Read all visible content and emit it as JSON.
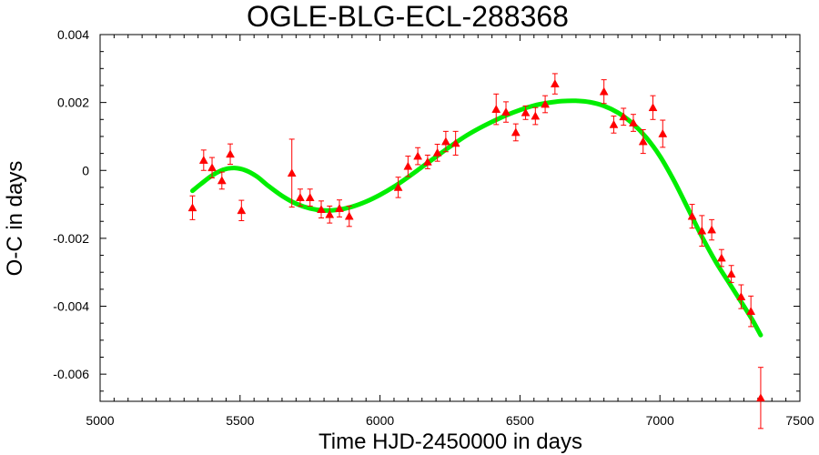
{
  "chart_data": {
    "type": "scatter",
    "title": "OGLE-BLG-ECL-288368",
    "xlabel": "Time HJD-2450000 in days",
    "ylabel": "O-C in days",
    "xlim": [
      5000,
      7500
    ],
    "ylim": [
      -0.0068,
      0.004
    ],
    "x_ticks": [
      5000,
      5500,
      6000,
      6500,
      7000,
      7500
    ],
    "x_tick_labels": [
      "5000",
      "5500",
      "6000",
      "6500",
      "7000",
      "7500"
    ],
    "y_ticks": [
      0.004,
      0.002,
      0,
      -0.002,
      -0.004,
      -0.006
    ],
    "y_tick_labels": [
      "0.004",
      "0.002",
      "0",
      "-0.002",
      "-0.004",
      "-0.006"
    ],
    "grid": false,
    "series": [
      {
        "kind": "points_with_errorbars",
        "color": "#ff0000",
        "marker": "triangle",
        "points": [
          {
            "x": 5330,
            "y": -0.0011,
            "err": 0.00035
          },
          {
            "x": 5370,
            "y": 0.0003,
            "err": 0.0003
          },
          {
            "x": 5400,
            "y": 8e-05,
            "err": 0.0003
          },
          {
            "x": 5435,
            "y": -0.0003,
            "err": 0.00025
          },
          {
            "x": 5465,
            "y": 0.00048,
            "err": 0.0003
          },
          {
            "x": 5505,
            "y": -0.00118,
            "err": 0.0003
          },
          {
            "x": 5685,
            "y": -8e-05,
            "err": 0.001
          },
          {
            "x": 5715,
            "y": -0.0008,
            "err": 0.00025
          },
          {
            "x": 5750,
            "y": -0.0008,
            "err": 0.00025
          },
          {
            "x": 5790,
            "y": -0.00115,
            "err": 0.00025
          },
          {
            "x": 5820,
            "y": -0.0013,
            "err": 0.00025
          },
          {
            "x": 5855,
            "y": -0.00112,
            "err": 0.00025
          },
          {
            "x": 5890,
            "y": -0.00135,
            "err": 0.0003
          },
          {
            "x": 6065,
            "y": -0.0005,
            "err": 0.0003
          },
          {
            "x": 6100,
            "y": 0.00012,
            "err": 0.0003
          },
          {
            "x": 6135,
            "y": 0.00042,
            "err": 0.00025
          },
          {
            "x": 6170,
            "y": 0.00025,
            "err": 0.0002
          },
          {
            "x": 6205,
            "y": 0.00052,
            "err": 0.00025
          },
          {
            "x": 6235,
            "y": 0.00085,
            "err": 0.0003
          },
          {
            "x": 6270,
            "y": 0.0008,
            "err": 0.00035
          },
          {
            "x": 6415,
            "y": 0.0018,
            "err": 0.00045
          },
          {
            "x": 6450,
            "y": 0.00172,
            "err": 0.0003
          },
          {
            "x": 6485,
            "y": 0.00112,
            "err": 0.00025
          },
          {
            "x": 6520,
            "y": 0.0017,
            "err": 0.0002
          },
          {
            "x": 6555,
            "y": 0.0016,
            "err": 0.00025
          },
          {
            "x": 6590,
            "y": 0.00195,
            "err": 0.00025
          },
          {
            "x": 6625,
            "y": 0.00255,
            "err": 0.0003
          },
          {
            "x": 6800,
            "y": 0.00232,
            "err": 0.00035
          },
          {
            "x": 6835,
            "y": 0.00135,
            "err": 0.00025
          },
          {
            "x": 6870,
            "y": 0.00158,
            "err": 0.00025
          },
          {
            "x": 6905,
            "y": 0.0014,
            "err": 0.00025
          },
          {
            "x": 6940,
            "y": 0.00085,
            "err": 0.00035
          },
          {
            "x": 6975,
            "y": 0.00185,
            "err": 0.00035
          },
          {
            "x": 7010,
            "y": 0.00108,
            "err": 0.0004
          },
          {
            "x": 7115,
            "y": -0.00135,
            "err": 0.00035
          },
          {
            "x": 7150,
            "y": -0.00178,
            "err": 0.00045
          },
          {
            "x": 7185,
            "y": -0.00175,
            "err": 0.0003
          },
          {
            "x": 7220,
            "y": -0.00258,
            "err": 0.00025
          },
          {
            "x": 7255,
            "y": -0.00305,
            "err": 0.00025
          },
          {
            "x": 7290,
            "y": -0.00372,
            "err": 0.00035
          },
          {
            "x": 7325,
            "y": -0.00415,
            "err": 0.00045
          },
          {
            "x": 7360,
            "y": -0.0067,
            "err": 0.0009
          }
        ]
      },
      {
        "kind": "fit_curve",
        "color": "#00ee00",
        "points": [
          {
            "x": 5330,
            "y": -0.0006
          },
          {
            "x": 5360,
            "y": -0.0004
          },
          {
            "x": 5400,
            "y": -0.00015
          },
          {
            "x": 5440,
            "y": 2e-05
          },
          {
            "x": 5480,
            "y": 7e-05
          },
          {
            "x": 5520,
            "y": 0.0
          },
          {
            "x": 5560,
            "y": -0.00018
          },
          {
            "x": 5600,
            "y": -0.00045
          },
          {
            "x": 5650,
            "y": -0.00075
          },
          {
            "x": 5700,
            "y": -0.00098
          },
          {
            "x": 5750,
            "y": -0.00112
          },
          {
            "x": 5800,
            "y": -0.00118
          },
          {
            "x": 5850,
            "y": -0.00116
          },
          {
            "x": 5900,
            "y": -0.00107
          },
          {
            "x": 5950,
            "y": -0.00092
          },
          {
            "x": 6000,
            "y": -0.00072
          },
          {
            "x": 6050,
            "y": -0.00048
          },
          {
            "x": 6100,
            "y": -0.0002
          },
          {
            "x": 6150,
            "y": 0.0001
          },
          {
            "x": 6200,
            "y": 0.0004
          },
          {
            "x": 6250,
            "y": 0.0007
          },
          {
            "x": 6300,
            "y": 0.00098
          },
          {
            "x": 6350,
            "y": 0.00122
          },
          {
            "x": 6400,
            "y": 0.00143
          },
          {
            "x": 6450,
            "y": 0.00162
          },
          {
            "x": 6500,
            "y": 0.00178
          },
          {
            "x": 6550,
            "y": 0.00191
          },
          {
            "x": 6600,
            "y": 0.00199
          },
          {
            "x": 6650,
            "y": 0.00204
          },
          {
            "x": 6700,
            "y": 0.00205
          },
          {
            "x": 6750,
            "y": 0.00201
          },
          {
            "x": 6800,
            "y": 0.0019
          },
          {
            "x": 6850,
            "y": 0.0017
          },
          {
            "x": 6900,
            "y": 0.0014
          },
          {
            "x": 6950,
            "y": 0.00098
          },
          {
            "x": 7000,
            "y": 0.00042
          },
          {
            "x": 7050,
            "y": -0.0003
          },
          {
            "x": 7100,
            "y": -0.00112
          },
          {
            "x": 7150,
            "y": -0.00195
          },
          {
            "x": 7200,
            "y": -0.0027
          },
          {
            "x": 7250,
            "y": -0.00335
          },
          {
            "x": 7300,
            "y": -0.004
          },
          {
            "x": 7330,
            "y": -0.0044
          },
          {
            "x": 7360,
            "y": -0.00485
          }
        ]
      }
    ]
  }
}
